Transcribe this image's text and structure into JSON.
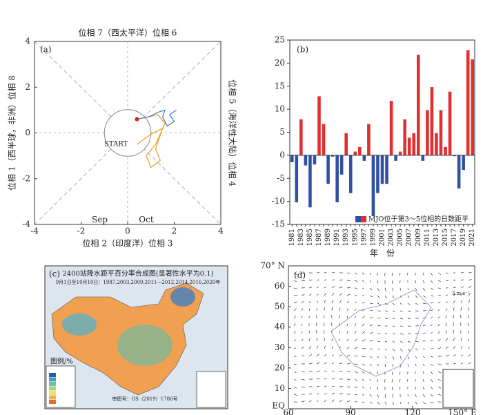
{
  "chart_data": [
    {
      "type": "phase",
      "panel": "(a)",
      "top_label": "位相 7（西太平洋）位相 6",
      "bottom_label": "位相 2（印度洋）位相 3",
      "left_label": "位相 1（西半球，非洲）位相 8",
      "right_label": "位相 5（海洋性大陆）位相 4",
      "xlim": [
        -4,
        4
      ],
      "ylim": [
        -4,
        4
      ],
      "xticks": [
        -4,
        -2,
        0,
        2,
        4
      ],
      "yticks": [
        -4,
        -2,
        0,
        2,
        4
      ],
      "series": [
        {
          "name": "Sep",
          "color": "#f0a030",
          "x": [
            0.4,
            0.8,
            1.1,
            1.5,
            1.2,
            1.4,
            1.0,
            0.8,
            1.2,
            1.6,
            1.3,
            0.9,
            0.4
          ],
          "y": [
            -0.5,
            -0.2,
            0.0,
            0.2,
            -0.7,
            -1.2,
            -1.5,
            -1.0,
            -0.5,
            0.4,
            0.8,
            0.7,
            0.6
          ]
        },
        {
          "name": "Oct",
          "color": "#4a80c8",
          "x": [
            0.4,
            0.9,
            1.3,
            1.6,
            1.5,
            1.7,
            2.0,
            1.8,
            2.1
          ],
          "y": [
            0.6,
            0.7,
            0.9,
            1.0,
            0.7,
            0.3,
            0.5,
            0.8,
            1.0
          ]
        }
      ],
      "start_label": "START",
      "start": [
        0.4,
        0.6
      ],
      "start_color": "#d22"
    },
    {
      "type": "bar",
      "panel": "(b)",
      "categories": [
        "1981",
        null,
        "1983",
        null,
        "1985",
        null,
        "1987",
        null,
        "1989",
        null,
        "1991",
        null,
        "1993",
        null,
        "1995",
        null,
        "1997",
        null,
        "1999",
        null,
        "2001",
        null,
        "2003",
        null,
        "2005",
        null,
        "2007",
        null,
        "2009",
        null,
        "2011",
        null,
        "2013",
        null,
        "2015",
        null,
        "2017",
        null,
        "2019",
        null,
        "2021"
      ],
      "values": [
        -1.5,
        -10.2,
        7.8,
        -2.2,
        -11.3,
        -2.0,
        12.8,
        6.8,
        -6.2,
        -0.3,
        -10.2,
        -4.2,
        4.8,
        -8.2,
        0.8,
        1.8,
        -1.2,
        6.8,
        -13.2,
        -8.2,
        -6.2,
        -6.2,
        11.8,
        -1.2,
        0.8,
        7.8,
        3.8,
        4.8,
        21.8,
        -1.2,
        9.8,
        14.8,
        4.8,
        9.8,
        1.8,
        13.8,
        -0.2,
        -7.2,
        -3.2,
        22.8,
        20.8
      ],
      "positive_color": "#e03030",
      "negative_color": "#3050a0",
      "legend": "MJO位于第3～5位相的日数距平",
      "xlabel": "年　份",
      "ylim": [
        -15,
        25
      ],
      "yticks": [
        -15,
        -10,
        -5,
        0,
        5,
        10,
        15,
        20,
        25
      ]
    },
    {
      "type": "map",
      "panel": "(c)",
      "title": "2400站降水距平百分率合成图(显著性水平为0.1)",
      "subtitle": "9月1日至10月10日：1987,2003,2009,2011—2012,2014,2016,2020年",
      "legend_title": "图例/%",
      "note": "审图号：GS（2019）1786号"
    },
    {
      "type": "vector",
      "panel": "(d)",
      "xlim": [
        60,
        150
      ],
      "ylim": [
        0,
        70
      ],
      "xticks": [
        60,
        90,
        120,
        {
          "value": 150,
          "label": "150° E"
        }
      ],
      "yticks": [
        {
          "value": 0,
          "label": "EQ"
        },
        10,
        20,
        30,
        40,
        50,
        60,
        {
          "value": 70,
          "label": "70° N"
        }
      ],
      "reference": "3 m·s⁻¹"
    }
  ]
}
